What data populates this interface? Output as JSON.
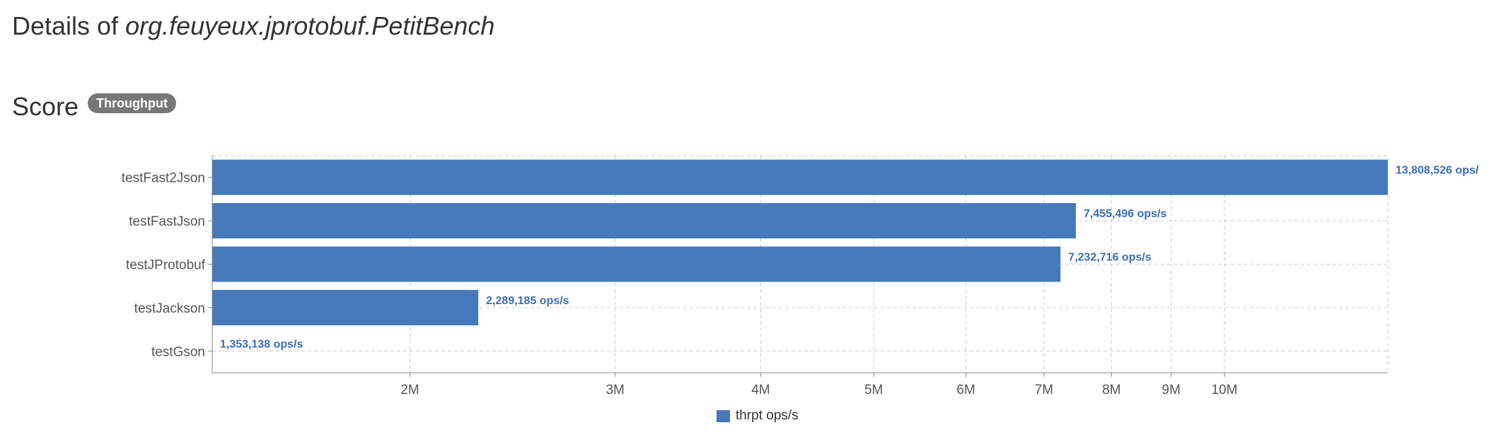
{
  "header": {
    "title_prefix": "Details of ",
    "benchmark_name": "org.feuyeux.jprotobuf.PetitBench"
  },
  "section": {
    "title": "Score",
    "mode_badge": "Throughput"
  },
  "colors": {
    "bar": "#4679b9",
    "data_label": "#3c6eb4",
    "grid": "#cccccc",
    "axis": "#888888"
  },
  "chart_data": {
    "type": "bar",
    "orientation": "horizontal",
    "x_scale": "log",
    "categories": [
      "testFast2Json",
      "testFastJson",
      "testJProtobuf",
      "testJackson",
      "testGson"
    ],
    "series": [
      {
        "name": "thrpt ops/s",
        "values": [
          13808526,
          7455496,
          7232716,
          2289185,
          1353138
        ],
        "labels": [
          "13,808,526 ops/",
          "7,455,496 ops/s",
          "7,232,716 ops/s",
          "2,289,185 ops/s",
          "1,353,138 ops/s"
        ]
      }
    ],
    "xlim": [
      1353138,
      13808526
    ],
    "x_ticks": [
      2000000,
      3000000,
      4000000,
      5000000,
      6000000,
      7000000,
      8000000,
      9000000,
      10000000
    ],
    "x_tick_labels": [
      "2M",
      "3M",
      "4M",
      "5M",
      "6M",
      "7M",
      "8M",
      "9M",
      "10M"
    ],
    "grid": true,
    "legend_position": "bottom-center"
  }
}
